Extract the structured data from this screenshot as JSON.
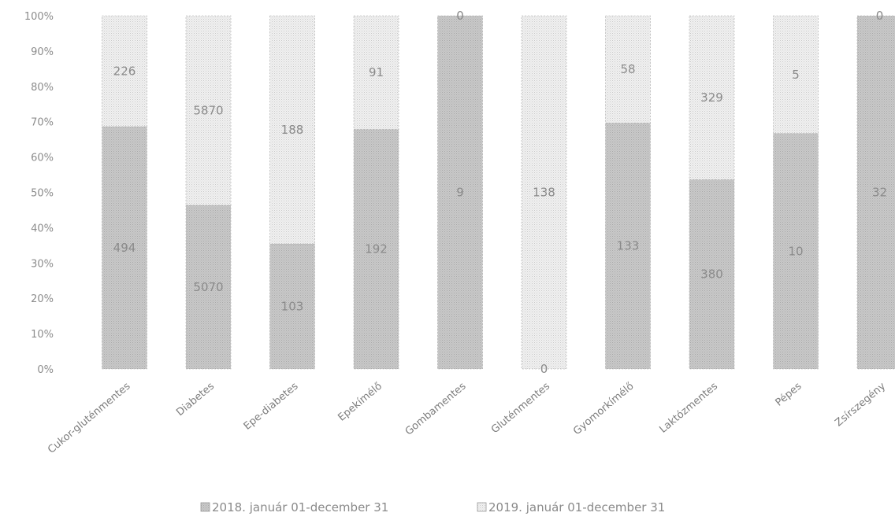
{
  "chart_data": {
    "type": "bar",
    "stacked": "percent",
    "categories": [
      "Cukor-gluténmentes",
      "Diabetes",
      "Epe-diabetes",
      "Epekímélő",
      "Gombamentes",
      "Gluténmentes",
      "Gyomorkímélő",
      "Laktózmentes",
      "Pépes",
      "Zsírszegény"
    ],
    "series": [
      {
        "name": "2018. január 01-december 31",
        "values": [
          494,
          5070,
          103,
          192,
          9,
          0,
          133,
          380,
          10,
          32
        ],
        "color": "#c8c8c8"
      },
      {
        "name": "2019. január 01-december 31",
        "values": [
          226,
          5870,
          188,
          91,
          0,
          138,
          58,
          329,
          5,
          0
        ],
        "color": "#ececec"
      }
    ],
    "y_ticks": [
      "0%",
      "10%",
      "20%",
      "30%",
      "40%",
      "50%",
      "60%",
      "70%",
      "80%",
      "90%",
      "100%"
    ],
    "ylim": [
      0,
      100
    ],
    "grid": false,
    "legend": "bottom",
    "xlabel": "",
    "ylabel": "",
    "title": ""
  }
}
